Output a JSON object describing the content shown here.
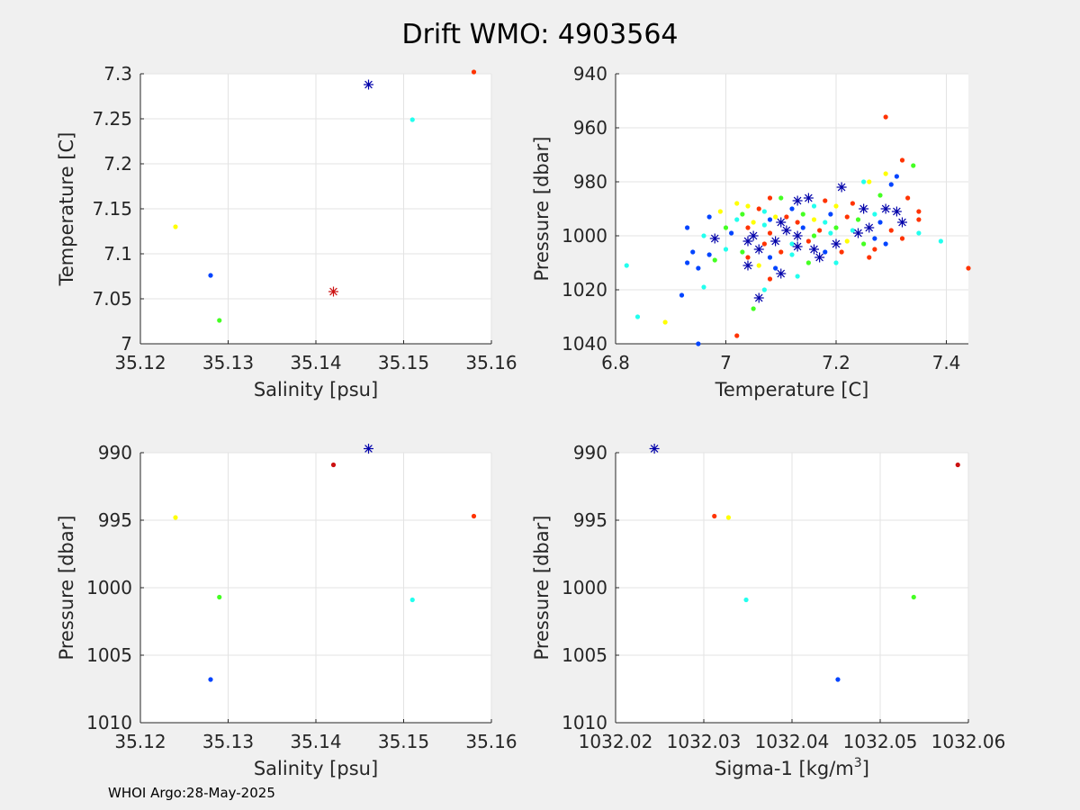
{
  "title": "Drift WMO: 4903564",
  "footer": "WHOI Argo:28-May-2025",
  "chart_data": [
    {
      "id": "ts",
      "type": "scatter",
      "xlabel": "Salinity [psu]",
      "ylabel": "Temperature [C]",
      "xlim": [
        35.12,
        35.16
      ],
      "ylim": [
        7.0,
        7.3
      ],
      "xticks": [
        35.12,
        35.13,
        35.14,
        35.15,
        35.16
      ],
      "yticks": [
        7.0,
        7.05,
        7.1,
        7.15,
        7.2,
        7.25,
        7.3
      ],
      "xtick_labels": [
        "35.12",
        "35.13",
        "35.14",
        "35.15",
        "35.16"
      ],
      "ytick_labels": [
        "7",
        "7.05",
        "7.1",
        "7.15",
        "7.2",
        "7.25",
        "7.3"
      ],
      "grid": true,
      "points": [
        {
          "x": 35.124,
          "y": 7.13,
          "color": "#ffff00",
          "marker": "dot"
        },
        {
          "x": 35.128,
          "y": 7.076,
          "color": "#0044ff",
          "marker": "dot"
        },
        {
          "x": 35.129,
          "y": 7.026,
          "color": "#44ff22",
          "marker": "dot"
        },
        {
          "x": 35.142,
          "y": 7.058,
          "color": "#cc1111",
          "marker": "star"
        },
        {
          "x": 35.146,
          "y": 7.288,
          "color": "#0000aa",
          "marker": "star"
        },
        {
          "x": 35.151,
          "y": 7.249,
          "color": "#22ffee",
          "marker": "dot"
        },
        {
          "x": 35.158,
          "y": 7.302,
          "color": "#ff3300",
          "marker": "dot"
        }
      ]
    },
    {
      "id": "tp",
      "type": "scatter",
      "xlabel": "Temperature [C]",
      "ylabel": "Pressure [dbar]",
      "xlim": [
        6.8,
        7.44
      ],
      "ylim": [
        940,
        1040
      ],
      "yreverse": true,
      "xticks": [
        6.8,
        7.0,
        7.2,
        7.4
      ],
      "yticks": [
        940,
        960,
        980,
        1000,
        1020,
        1040
      ],
      "xtick_labels": [
        "6.8",
        "7",
        "7.2",
        "7.4"
      ],
      "ytick_labels": [
        "940",
        "960",
        "980",
        "1000",
        "1020",
        "1040"
      ],
      "grid": true,
      "points": [
        {
          "x": 7.29,
          "y": 956,
          "color": "#ff3300",
          "marker": "dot"
        },
        {
          "x": 7.32,
          "y": 972,
          "color": "#ff3300",
          "marker": "dot"
        },
        {
          "x": 7.34,
          "y": 974,
          "color": "#44ff22",
          "marker": "dot"
        },
        {
          "x": 7.29,
          "y": 977,
          "color": "#ffff00",
          "marker": "dot"
        },
        {
          "x": 7.31,
          "y": 978,
          "color": "#0044ff",
          "marker": "dot"
        },
        {
          "x": 7.26,
          "y": 980,
          "color": "#ffff00",
          "marker": "dot"
        },
        {
          "x": 7.25,
          "y": 980,
          "color": "#22ffee",
          "marker": "dot"
        },
        {
          "x": 7.3,
          "y": 981,
          "color": "#0044ff",
          "marker": "dot"
        },
        {
          "x": 7.21,
          "y": 982,
          "color": "#0000aa",
          "marker": "star"
        },
        {
          "x": 7.15,
          "y": 986,
          "color": "#0000aa",
          "marker": "star"
        },
        {
          "x": 7.13,
          "y": 987,
          "color": "#0000aa",
          "marker": "star"
        },
        {
          "x": 7.1,
          "y": 986,
          "color": "#44ff22",
          "marker": "dot"
        },
        {
          "x": 7.08,
          "y": 986,
          "color": "#ff3300",
          "marker": "dot"
        },
        {
          "x": 7.28,
          "y": 985,
          "color": "#44ff22",
          "marker": "dot"
        },
        {
          "x": 7.33,
          "y": 986,
          "color": "#ff3300",
          "marker": "dot"
        },
        {
          "x": 7.18,
          "y": 987,
          "color": "#ff3300",
          "marker": "dot"
        },
        {
          "x": 7.02,
          "y": 988,
          "color": "#ffff00",
          "marker": "dot"
        },
        {
          "x": 7.04,
          "y": 989,
          "color": "#ffff00",
          "marker": "dot"
        },
        {
          "x": 7.06,
          "y": 990,
          "color": "#ff3300",
          "marker": "dot"
        },
        {
          "x": 7.12,
          "y": 990,
          "color": "#0044ff",
          "marker": "dot"
        },
        {
          "x": 7.16,
          "y": 989,
          "color": "#22ffee",
          "marker": "dot"
        },
        {
          "x": 7.2,
          "y": 989,
          "color": "#ffff00",
          "marker": "dot"
        },
        {
          "x": 7.23,
          "y": 988,
          "color": "#ff3300",
          "marker": "dot"
        },
        {
          "x": 7.25,
          "y": 990,
          "color": "#0000aa",
          "marker": "star"
        },
        {
          "x": 7.29,
          "y": 990,
          "color": "#0000aa",
          "marker": "star"
        },
        {
          "x": 7.31,
          "y": 991,
          "color": "#0000aa",
          "marker": "star"
        },
        {
          "x": 7.35,
          "y": 991,
          "color": "#ff3300",
          "marker": "dot"
        },
        {
          "x": 6.99,
          "y": 991,
          "color": "#ffff00",
          "marker": "dot"
        },
        {
          "x": 7.03,
          "y": 992,
          "color": "#44ff22",
          "marker": "dot"
        },
        {
          "x": 7.07,
          "y": 991,
          "color": "#22ffee",
          "marker": "dot"
        },
        {
          "x": 7.09,
          "y": 993,
          "color": "#ffff00",
          "marker": "dot"
        },
        {
          "x": 7.11,
          "y": 993,
          "color": "#ff3300",
          "marker": "dot"
        },
        {
          "x": 7.14,
          "y": 992,
          "color": "#44ff22",
          "marker": "dot"
        },
        {
          "x": 7.19,
          "y": 992,
          "color": "#0044ff",
          "marker": "dot"
        },
        {
          "x": 7.22,
          "y": 993,
          "color": "#ff3300",
          "marker": "dot"
        },
        {
          "x": 7.27,
          "y": 992,
          "color": "#22ffee",
          "marker": "dot"
        },
        {
          "x": 6.97,
          "y": 993,
          "color": "#0044ff",
          "marker": "dot"
        },
        {
          "x": 7.02,
          "y": 994,
          "color": "#22ffee",
          "marker": "dot"
        },
        {
          "x": 7.05,
          "y": 995,
          "color": "#ffff00",
          "marker": "dot"
        },
        {
          "x": 7.08,
          "y": 994,
          "color": "#0044ff",
          "marker": "dot"
        },
        {
          "x": 7.1,
          "y": 995,
          "color": "#0000aa",
          "marker": "star"
        },
        {
          "x": 7.13,
          "y": 995,
          "color": "#ff3300",
          "marker": "dot"
        },
        {
          "x": 7.16,
          "y": 994,
          "color": "#ffff00",
          "marker": "dot"
        },
        {
          "x": 7.18,
          "y": 995,
          "color": "#22ffee",
          "marker": "dot"
        },
        {
          "x": 7.24,
          "y": 994,
          "color": "#44ff22",
          "marker": "dot"
        },
        {
          "x": 7.28,
          "y": 995,
          "color": "#0044ff",
          "marker": "dot"
        },
        {
          "x": 7.32,
          "y": 995,
          "color": "#0000aa",
          "marker": "star"
        },
        {
          "x": 7.35,
          "y": 994,
          "color": "#ff3300",
          "marker": "dot"
        },
        {
          "x": 6.93,
          "y": 997,
          "color": "#0044ff",
          "marker": "dot"
        },
        {
          "x": 7.0,
          "y": 997,
          "color": "#44ff22",
          "marker": "dot"
        },
        {
          "x": 7.04,
          "y": 997,
          "color": "#ff3300",
          "marker": "dot"
        },
        {
          "x": 7.07,
          "y": 996,
          "color": "#22ffee",
          "marker": "dot"
        },
        {
          "x": 7.11,
          "y": 998,
          "color": "#0000aa",
          "marker": "star"
        },
        {
          "x": 7.14,
          "y": 997,
          "color": "#0044ff",
          "marker": "dot"
        },
        {
          "x": 7.17,
          "y": 998,
          "color": "#ff3300",
          "marker": "dot"
        },
        {
          "x": 7.2,
          "y": 997,
          "color": "#44ff22",
          "marker": "dot"
        },
        {
          "x": 7.23,
          "y": 998,
          "color": "#22ffee",
          "marker": "dot"
        },
        {
          "x": 7.26,
          "y": 997,
          "color": "#0000aa",
          "marker": "star"
        },
        {
          "x": 7.3,
          "y": 998,
          "color": "#ff3300",
          "marker": "dot"
        },
        {
          "x": 7.35,
          "y": 999,
          "color": "#22ffee",
          "marker": "dot"
        },
        {
          "x": 6.96,
          "y": 1000,
          "color": "#22ffee",
          "marker": "dot"
        },
        {
          "x": 7.01,
          "y": 999,
          "color": "#0044ff",
          "marker": "dot"
        },
        {
          "x": 7.05,
          "y": 1000,
          "color": "#0000aa",
          "marker": "star"
        },
        {
          "x": 7.08,
          "y": 999,
          "color": "#ff3300",
          "marker": "dot"
        },
        {
          "x": 7.13,
          "y": 1000,
          "color": "#0000aa",
          "marker": "star"
        },
        {
          "x": 7.16,
          "y": 1000,
          "color": "#44ff22",
          "marker": "dot"
        },
        {
          "x": 7.19,
          "y": 999,
          "color": "#22ffee",
          "marker": "dot"
        },
        {
          "x": 7.24,
          "y": 999,
          "color": "#0000aa",
          "marker": "star"
        },
        {
          "x": 7.27,
          "y": 1001,
          "color": "#0044ff",
          "marker": "dot"
        },
        {
          "x": 7.32,
          "y": 1001,
          "color": "#ff3300",
          "marker": "dot"
        },
        {
          "x": 7.39,
          "y": 1002,
          "color": "#22ffee",
          "marker": "dot"
        },
        {
          "x": 6.98,
          "y": 1001,
          "color": "#0000aa",
          "marker": "star"
        },
        {
          "x": 7.04,
          "y": 1002,
          "color": "#0000aa",
          "marker": "star"
        },
        {
          "x": 7.07,
          "y": 1003,
          "color": "#ff3300",
          "marker": "dot"
        },
        {
          "x": 7.09,
          "y": 1002,
          "color": "#0000aa",
          "marker": "star"
        },
        {
          "x": 7.12,
          "y": 1003,
          "color": "#22ffee",
          "marker": "dot"
        },
        {
          "x": 7.15,
          "y": 1002,
          "color": "#ff3300",
          "marker": "dot"
        },
        {
          "x": 7.2,
          "y": 1003,
          "color": "#0000aa",
          "marker": "star"
        },
        {
          "x": 7.22,
          "y": 1002,
          "color": "#ffff00",
          "marker": "dot"
        },
        {
          "x": 7.25,
          "y": 1003,
          "color": "#44ff22",
          "marker": "dot"
        },
        {
          "x": 7.29,
          "y": 1003,
          "color": "#0044ff",
          "marker": "dot"
        },
        {
          "x": 6.94,
          "y": 1006,
          "color": "#0044ff",
          "marker": "dot"
        },
        {
          "x": 7.0,
          "y": 1005,
          "color": "#22ffee",
          "marker": "dot"
        },
        {
          "x": 7.03,
          "y": 1006,
          "color": "#44ff22",
          "marker": "dot"
        },
        {
          "x": 7.06,
          "y": 1005,
          "color": "#0000aa",
          "marker": "star"
        },
        {
          "x": 7.1,
          "y": 1006,
          "color": "#ff3300",
          "marker": "dot"
        },
        {
          "x": 7.13,
          "y": 1004,
          "color": "#0000aa",
          "marker": "star"
        },
        {
          "x": 7.16,
          "y": 1005,
          "color": "#0000aa",
          "marker": "star"
        },
        {
          "x": 7.18,
          "y": 1006,
          "color": "#0044ff",
          "marker": "dot"
        },
        {
          "x": 7.21,
          "y": 1006,
          "color": "#ff3300",
          "marker": "dot"
        },
        {
          "x": 7.27,
          "y": 1005,
          "color": "#ff3300",
          "marker": "dot"
        },
        {
          "x": 6.97,
          "y": 1007,
          "color": "#0044ff",
          "marker": "dot"
        },
        {
          "x": 7.04,
          "y": 1008,
          "color": "#ff3300",
          "marker": "dot"
        },
        {
          "x": 7.08,
          "y": 1008,
          "color": "#0044ff",
          "marker": "dot"
        },
        {
          "x": 7.12,
          "y": 1007,
          "color": "#22ffee",
          "marker": "dot"
        },
        {
          "x": 7.17,
          "y": 1008,
          "color": "#0000aa",
          "marker": "star"
        },
        {
          "x": 7.26,
          "y": 1008,
          "color": "#ff3300",
          "marker": "dot"
        },
        {
          "x": 6.93,
          "y": 1010,
          "color": "#0044ff",
          "marker": "dot"
        },
        {
          "x": 6.98,
          "y": 1009,
          "color": "#44ff22",
          "marker": "dot"
        },
        {
          "x": 7.04,
          "y": 1011,
          "color": "#0000aa",
          "marker": "star"
        },
        {
          "x": 7.06,
          "y": 1011,
          "color": "#ffff00",
          "marker": "dot"
        },
        {
          "x": 7.09,
          "y": 1012,
          "color": "#0044ff",
          "marker": "dot"
        },
        {
          "x": 7.2,
          "y": 1010,
          "color": "#22ffee",
          "marker": "dot"
        },
        {
          "x": 7.15,
          "y": 1010,
          "color": "#44ff22",
          "marker": "dot"
        },
        {
          "x": 6.82,
          "y": 1011,
          "color": "#22ffee",
          "marker": "dot"
        },
        {
          "x": 6.95,
          "y": 1012,
          "color": "#0044ff",
          "marker": "dot"
        },
        {
          "x": 7.44,
          "y": 1012,
          "color": "#ff3300",
          "marker": "dot"
        },
        {
          "x": 7.1,
          "y": 1014,
          "color": "#0000aa",
          "marker": "star"
        },
        {
          "x": 7.13,
          "y": 1015,
          "color": "#22ffee",
          "marker": "dot"
        },
        {
          "x": 7.08,
          "y": 1016,
          "color": "#ff3300",
          "marker": "dot"
        },
        {
          "x": 6.96,
          "y": 1019,
          "color": "#22ffee",
          "marker": "dot"
        },
        {
          "x": 7.07,
          "y": 1020,
          "color": "#22ffee",
          "marker": "dot"
        },
        {
          "x": 6.92,
          "y": 1022,
          "color": "#0044ff",
          "marker": "dot"
        },
        {
          "x": 7.06,
          "y": 1023,
          "color": "#0000aa",
          "marker": "star"
        },
        {
          "x": 7.05,
          "y": 1027,
          "color": "#44ff22",
          "marker": "dot"
        },
        {
          "x": 6.84,
          "y": 1030,
          "color": "#22ffee",
          "marker": "dot"
        },
        {
          "x": 6.89,
          "y": 1032,
          "color": "#ffff00",
          "marker": "dot"
        },
        {
          "x": 7.02,
          "y": 1037,
          "color": "#ff3300",
          "marker": "dot"
        },
        {
          "x": 6.95,
          "y": 1040,
          "color": "#0044ff",
          "marker": "dot"
        }
      ]
    },
    {
      "id": "sp",
      "type": "scatter",
      "xlabel": "Salinity [psu]",
      "ylabel": "Pressure [dbar]",
      "xlim": [
        35.12,
        35.16
      ],
      "ylim": [
        990,
        1010
      ],
      "yreverse": true,
      "xticks": [
        35.12,
        35.13,
        35.14,
        35.15,
        35.16
      ],
      "yticks": [
        990,
        995,
        1000,
        1005,
        1010
      ],
      "xtick_labels": [
        "35.12",
        "35.13",
        "35.14",
        "35.15",
        "35.16"
      ],
      "ytick_labels": [
        "990",
        "995",
        "1000",
        "1005",
        "1010"
      ],
      "grid": true,
      "points": [
        {
          "x": 35.146,
          "y": 989.7,
          "color": "#0000aa",
          "marker": "star"
        },
        {
          "x": 35.142,
          "y": 990.9,
          "color": "#cc1111",
          "marker": "dot"
        },
        {
          "x": 35.124,
          "y": 994.8,
          "color": "#ffff00",
          "marker": "dot"
        },
        {
          "x": 35.158,
          "y": 994.7,
          "color": "#ff3300",
          "marker": "dot"
        },
        {
          "x": 35.129,
          "y": 1000.7,
          "color": "#44ff22",
          "marker": "dot"
        },
        {
          "x": 35.151,
          "y": 1000.9,
          "color": "#22ffee",
          "marker": "dot"
        },
        {
          "x": 35.128,
          "y": 1006.8,
          "color": "#0044ff",
          "marker": "dot"
        }
      ]
    },
    {
      "id": "dp",
      "type": "scatter",
      "xlabel": "Sigma-1 [kg/m",
      "xlabel_sup": "3",
      "xlabel_end": "]",
      "ylabel": "Pressure [dbar]",
      "xlim": [
        1032.02,
        1032.06
      ],
      "ylim": [
        990,
        1010
      ],
      "yreverse": true,
      "xticks": [
        1032.02,
        1032.03,
        1032.04,
        1032.05,
        1032.06
      ],
      "yticks": [
        990,
        995,
        1000,
        1005,
        1010
      ],
      "xtick_labels": [
        "1032.02",
        "1032.03",
        "1032.04",
        "1032.05",
        "1032.06"
      ],
      "ytick_labels": [
        "990",
        "995",
        "1000",
        "1005",
        "1010"
      ],
      "grid": true,
      "points": [
        {
          "x": 1032.0244,
          "y": 989.7,
          "color": "#0000aa",
          "marker": "star"
        },
        {
          "x": 1032.0588,
          "y": 990.9,
          "color": "#cc1111",
          "marker": "dot"
        },
        {
          "x": 1032.0312,
          "y": 994.7,
          "color": "#ff3300",
          "marker": "dot"
        },
        {
          "x": 1032.0328,
          "y": 994.8,
          "color": "#ffff00",
          "marker": "dot"
        },
        {
          "x": 1032.0348,
          "y": 1000.9,
          "color": "#22ffee",
          "marker": "dot"
        },
        {
          "x": 1032.0538,
          "y": 1000.7,
          "color": "#44ff22",
          "marker": "dot"
        },
        {
          "x": 1032.0452,
          "y": 1006.8,
          "color": "#0044ff",
          "marker": "dot"
        }
      ]
    }
  ]
}
